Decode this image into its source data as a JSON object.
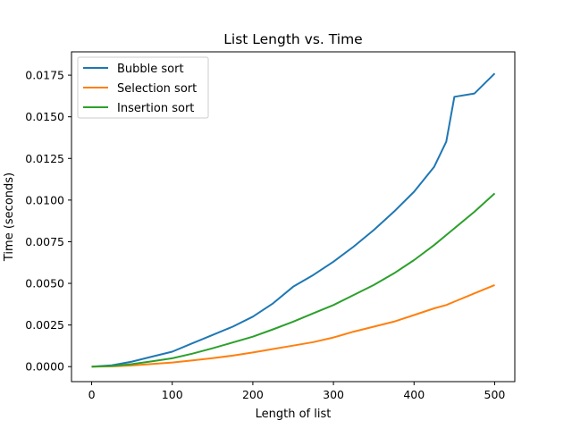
{
  "chart_data": {
    "type": "line",
    "title": "List Length vs. Time",
    "xlabel": "Length of list",
    "ylabel": "Time (seconds)",
    "xlim": [
      -25,
      525
    ],
    "ylim": [
      -0.0009,
      0.0189
    ],
    "xticks": [
      0,
      100,
      200,
      300,
      400,
      500
    ],
    "yticks": [
      0.0,
      0.0025,
      0.005,
      0.0075,
      0.01,
      0.0125,
      0.015,
      0.0175
    ],
    "ytick_labels": [
      "0.0000",
      "0.0025",
      "0.0050",
      "0.0075",
      "0.0100",
      "0.0125",
      "0.0150",
      "0.0175"
    ],
    "grid": false,
    "legend_position": "top-left",
    "x": [
      0,
      25,
      50,
      75,
      100,
      125,
      150,
      175,
      200,
      225,
      250,
      275,
      300,
      325,
      350,
      375,
      400,
      425,
      440,
      450,
      475,
      500
    ],
    "series": [
      {
        "name": "Bubble sort",
        "color": "#1f77b4",
        "values": [
          0.0,
          8e-05,
          0.0003,
          0.0006,
          0.0009,
          0.0014,
          0.0019,
          0.0024,
          0.003,
          0.0038,
          0.0048,
          0.0055,
          0.0063,
          0.0072,
          0.0082,
          0.0093,
          0.0105,
          0.012,
          0.0135,
          0.0162,
          0.0164,
          0.0176
        ]
      },
      {
        "name": "Selection sort",
        "color": "#ff7f0e",
        "values": [
          0.0,
          2e-05,
          7e-05,
          0.00016,
          0.00025,
          0.00037,
          0.00051,
          0.00066,
          0.00085,
          0.00106,
          0.00126,
          0.00147,
          0.00175,
          0.0021,
          0.0024,
          0.0027,
          0.0031,
          0.0035,
          0.0037,
          0.0039,
          0.0044,
          0.0049
        ]
      },
      {
        "name": "Insertion sort",
        "color": "#2ca02c",
        "values": [
          0.0,
          4e-05,
          0.00015,
          0.00032,
          0.0005,
          0.00078,
          0.0011,
          0.00145,
          0.0018,
          0.00224,
          0.0027,
          0.0032,
          0.0037,
          0.0043,
          0.0049,
          0.0056,
          0.0064,
          0.0073,
          0.0079,
          0.0083,
          0.0093,
          0.0104
        ]
      }
    ]
  }
}
